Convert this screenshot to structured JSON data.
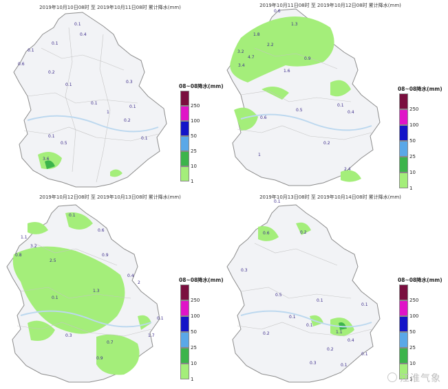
{
  "colors": {
    "bg": "#ffffff",
    "province_fill": "#f2f3f6",
    "border": "#9a9a9a",
    "label": "#3a2a8a"
  },
  "legend": {
    "title": "08~08降水(mm)",
    "ticks": [
      "250",
      "100",
      "50",
      "25",
      "10",
      "1"
    ],
    "colors": [
      "#7a0f3f",
      "#e014c8",
      "#1414c8",
      "#5aa8e8",
      "#3cb44b",
      "#a4ee7a"
    ]
  },
  "panels": [
    {
      "title": "2019年10月10日08时 至 2019年10月11日08时 累计降水(mm)",
      "labels": [
        "0.1",
        "0.4",
        "0.1",
        "0.1",
        "0.6",
        "0.2",
        "0.1",
        "0.3",
        "0.1",
        "1",
        "0.2",
        "0.1",
        "0.1",
        "0.5",
        "0.1",
        "3.6"
      ]
    },
    {
      "title": "2019年10月11日08时 至 2019年10月12日08时 累计降水(mm)",
      "labels": [
        "0.6",
        "1.3",
        "1.8",
        "2.2",
        "3.2",
        "4.7",
        "3.4",
        "1.6",
        "0.9",
        "0.6",
        "0.1",
        "0.4",
        "0.5",
        "0.2",
        "1",
        "2.4"
      ]
    },
    {
      "title": "2019年10月12日08时 至 2019年10月13日08时 累计降水(mm)",
      "labels": [
        "0.1",
        "1.1",
        "0.6",
        "3.2",
        "0.8",
        "2.5",
        "0.9",
        "1.3",
        "0.1",
        "0.4",
        "2",
        "0.3",
        "0.7",
        "1.7",
        "0.9",
        "0.1"
      ]
    },
    {
      "title": "2019年10月13日08时 至 2019年10月14日08时 累计降水(mm)",
      "labels": [
        "0.1",
        "0.6",
        "0.2",
        "0.3",
        "0.5",
        "0.1",
        "0.1",
        "0.2",
        "0.1",
        "0.1",
        "1.1",
        "0.4",
        "0.2",
        "0.1",
        "0.3",
        "0.1"
      ]
    }
  ],
  "watermark": "江淮气象"
}
